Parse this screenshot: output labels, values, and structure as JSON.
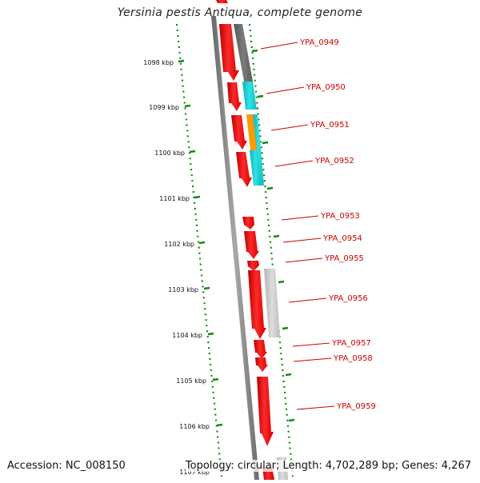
{
  "title": "Yersinia pestis Antiqua, complete genome",
  "footer": {
    "accession": "Accession: NC_008150",
    "summary": "Topology: circular; Length: 4,702,289 bp; Genes: 4,267"
  },
  "scale": {
    "unit": "kbp",
    "ticks": [
      {
        "label": "1098 kbp"
      },
      {
        "label": "1099 kbp"
      },
      {
        "label": "1100 kbp"
      },
      {
        "label": "1101 kbp"
      },
      {
        "label": "1102 kbp"
      },
      {
        "label": "1103 kbp"
      },
      {
        "label": "1104 kbp"
      },
      {
        "label": "1105 kbp"
      },
      {
        "label": "1106 kbp"
      },
      {
        "label": "1107 kbp"
      }
    ]
  },
  "genes": [
    {
      "label": "YPA_0949"
    },
    {
      "label": "YPA_0950"
    },
    {
      "label": "YPA_0951"
    },
    {
      "label": "YPA_0952"
    },
    {
      "label": "YPA_0953"
    },
    {
      "label": "YPA_0954"
    },
    {
      "label": "YPA_0955"
    },
    {
      "label": "YPA_0956"
    },
    {
      "label": "YPA_0957"
    },
    {
      "label": "YPA_0958"
    },
    {
      "label": "YPA_0959"
    }
  ],
  "colors": {
    "gene": "#ff0000",
    "gene_label": "#cc0000",
    "backbone": "#8a8a8a",
    "scale_dots": "#138a13",
    "feature_dark_gray": "#6e6e6e",
    "feature_cyan": "#15c8cc",
    "feature_orange": "#ff9900",
    "feature_light_gray": "#c4c4c4"
  }
}
